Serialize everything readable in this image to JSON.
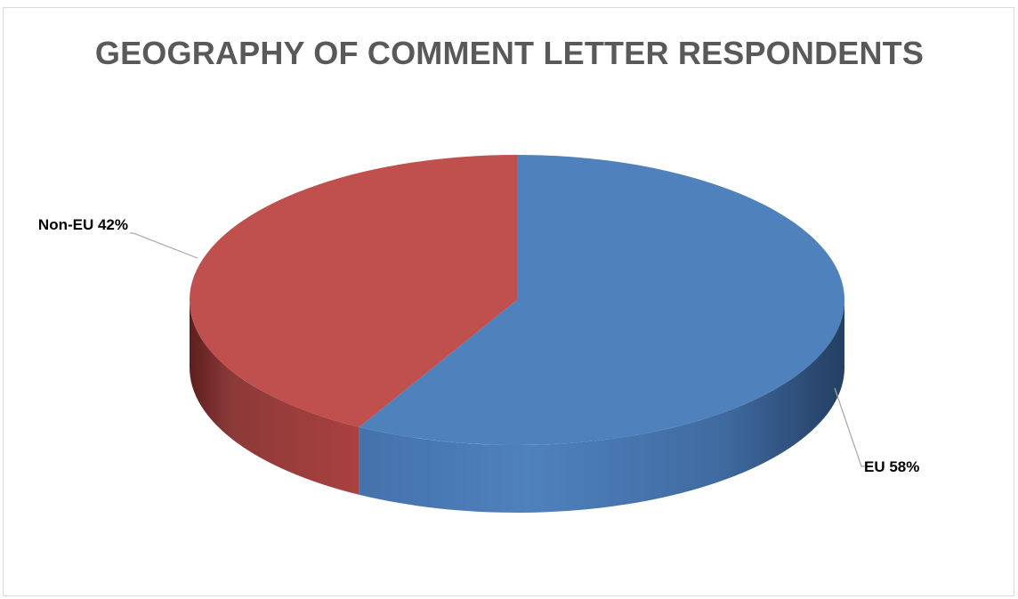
{
  "chart_data": {
    "type": "pie",
    "style": "3d",
    "title": "GEOGRAPHY OF COMMENT LETTER RESPONDENTS",
    "categories": [
      "EU",
      "Non-EU"
    ],
    "values": [
      58,
      42
    ],
    "unit": "%",
    "data_labels": [
      "EU 58%",
      "Non-EU 42%"
    ],
    "colors": [
      "#4f81bd",
      "#c0504d"
    ],
    "legend": "none"
  }
}
